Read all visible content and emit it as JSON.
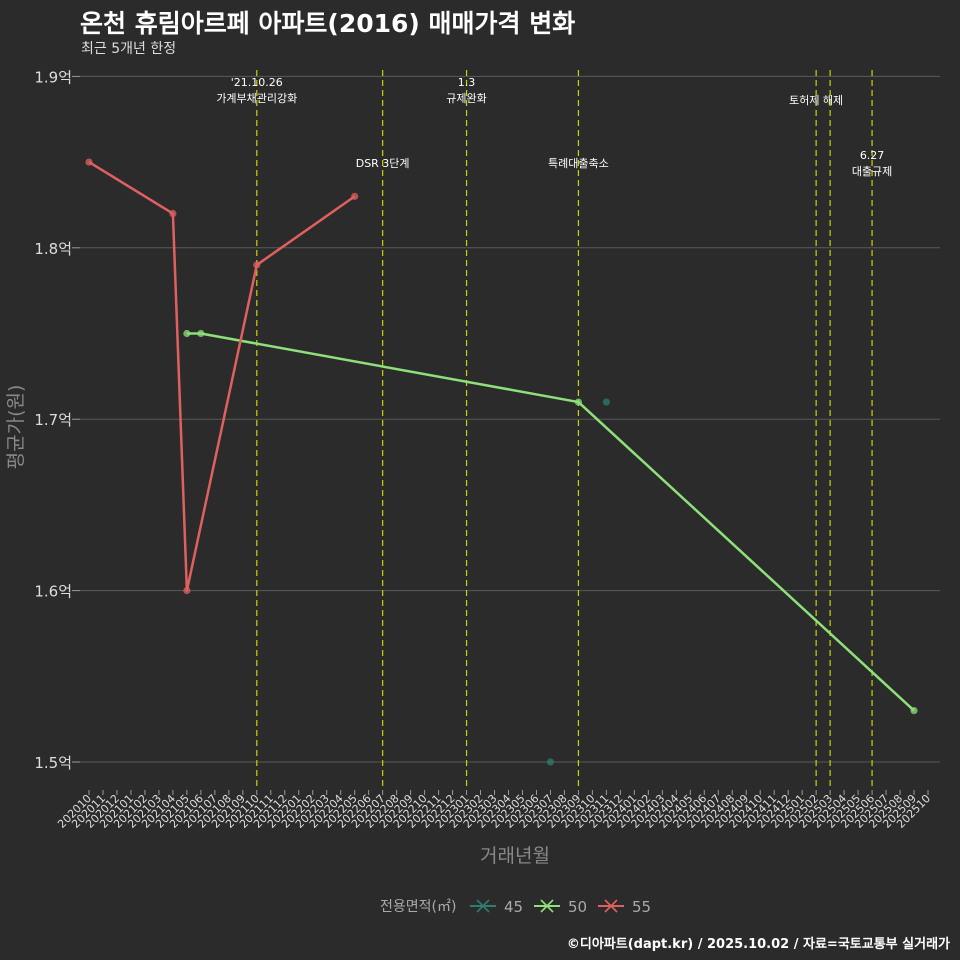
{
  "header": {
    "title": "온천 휴림아르페 아파트(2016) 매매가격 변화",
    "subtitle": "최근 5개년 한정"
  },
  "footer": {
    "credit": "©디아파트(dapt.kr) / 2025.10.02 / 자료=국토교통부 실거래가"
  },
  "colors": {
    "background": "#2b2b2b",
    "grid": "#5a5a5a",
    "event_line": "#c8d400",
    "s45": "#2e7d6e",
    "s50": "#8ee07a",
    "s55": "#e06060"
  },
  "chart_data": {
    "type": "line",
    "title": "온천 휴림아르페 아파트(2016) 매매가격 변화",
    "xlabel": "거래년월",
    "ylabel": "평균가(원)",
    "ylim": [
      1.48,
      1.9
    ],
    "yticks": [
      1.5,
      1.6,
      1.7,
      1.8,
      1.9
    ],
    "ytick_labels": [
      "1.5억",
      "1.6억",
      "1.7억",
      "1.8억",
      "1.9억"
    ],
    "categories": [
      "202010",
      "202011",
      "202012",
      "202101",
      "202102",
      "202103",
      "202104",
      "202105",
      "202106",
      "202107",
      "202108",
      "202109",
      "202110",
      "202111",
      "202112",
      "202201",
      "202202",
      "202203",
      "202204",
      "202205",
      "202206",
      "202207",
      "202208",
      "202209",
      "202210",
      "202211",
      "202212",
      "202301",
      "202302",
      "202303",
      "202304",
      "202305",
      "202306",
      "202307",
      "202308",
      "202309",
      "202310",
      "202311",
      "202312",
      "202401",
      "202402",
      "202403",
      "202404",
      "202405",
      "202406",
      "202407",
      "202408",
      "202409",
      "202410",
      "202411",
      "202412",
      "202501",
      "202502",
      "202503",
      "202504",
      "202505",
      "202506",
      "202507",
      "202508",
      "202509",
      "202510"
    ],
    "legend": {
      "title": "전용면적(㎡)",
      "position": "bottom"
    },
    "series": [
      {
        "name": "45",
        "color": "#2e7d6e",
        "line": false,
        "points": [
          {
            "x": "202307",
            "y": 1.5
          },
          {
            "x": "202311",
            "y": 1.71
          }
        ]
      },
      {
        "name": "50",
        "color": "#8ee07a",
        "line": true,
        "points": [
          {
            "x": "202105",
            "y": 1.75
          },
          {
            "x": "202106",
            "y": 1.75
          },
          {
            "x": "202309",
            "y": 1.71
          },
          {
            "x": "202509",
            "y": 1.53
          }
        ]
      },
      {
        "name": "55",
        "color": "#e06060",
        "line": true,
        "points": [
          {
            "x": "202010",
            "y": 1.85
          },
          {
            "x": "202104",
            "y": 1.82
          },
          {
            "x": "202105",
            "y": 1.6
          },
          {
            "x": "202110",
            "y": 1.79
          },
          {
            "x": "202205",
            "y": 1.83
          }
        ]
      }
    ],
    "events": [
      {
        "x": "202110",
        "lines": [
          "'21.10.26",
          "가계부채관리강화"
        ],
        "level": "high"
      },
      {
        "x": "202207",
        "lines": [
          "DSR 3단계"
        ],
        "level": "mid"
      },
      {
        "x": "202301",
        "lines": [
          "1.3",
          "규제완화"
        ],
        "level": "high"
      },
      {
        "x": "202309",
        "lines": [
          "특례대출축소"
        ],
        "level": "mid"
      },
      {
        "x": "202502",
        "lines": [
          "토허제 해제"
        ],
        "level": "top"
      },
      {
        "x": "202503",
        "lines": [],
        "level": "top"
      },
      {
        "x": "202506",
        "lines": [
          "6.27",
          "대출규제"
        ],
        "level": "mid"
      }
    ]
  }
}
